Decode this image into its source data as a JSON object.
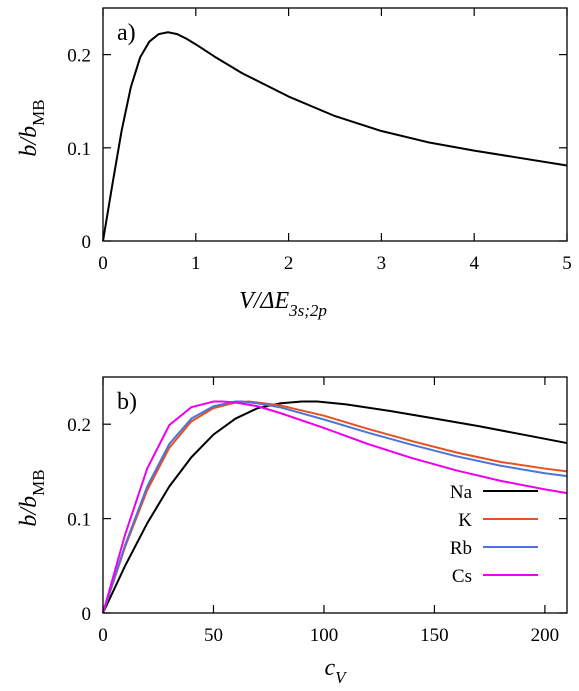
{
  "chart_data": [
    {
      "panel_label": "a)",
      "type": "line",
      "ylabel": {
        "main": "b/b",
        "sub": "MB"
      },
      "xlabel": {
        "main": "V/ΔE",
        "sub": "3s;2p"
      },
      "xlim": [
        0,
        5
      ],
      "ylim": [
        0,
        0.25
      ],
      "xticks": [
        0,
        1,
        2,
        3,
        4,
        5
      ],
      "yticks": [
        0,
        0.1,
        0.2
      ],
      "xtick_labels": [
        "0",
        "1",
        "2",
        "3",
        "4",
        "5"
      ],
      "ytick_labels": [
        "0",
        "0.1",
        "0.2"
      ],
      "series": [
        {
          "color": "#000000",
          "x": [
            0,
            0.1,
            0.2,
            0.3,
            0.4,
            0.5,
            0.6,
            0.7,
            0.8,
            0.9,
            1.0,
            1.2,
            1.5,
            2.0,
            2.5,
            3.0,
            3.5,
            4.0,
            4.5,
            5.0
          ],
          "y": [
            0,
            0.06,
            0.118,
            0.165,
            0.197,
            0.214,
            0.222,
            0.224,
            0.222,
            0.217,
            0.211,
            0.198,
            0.18,
            0.155,
            0.134,
            0.118,
            0.106,
            0.097,
            0.089,
            0.081
          ]
        }
      ]
    },
    {
      "panel_label": "b)",
      "type": "line",
      "ylabel": {
        "main": "b/b",
        "sub": "MB"
      },
      "xlabel": {
        "main": "c",
        "sub": "V"
      },
      "xlim": [
        0,
        210
      ],
      "ylim": [
        0,
        0.25
      ],
      "xticks": [
        0,
        50,
        100,
        150,
        200
      ],
      "yticks": [
        0,
        0.1,
        0.2
      ],
      "xtick_labels": [
        "0",
        "50",
        "100",
        "150",
        "200"
      ],
      "ytick_labels": [
        "0",
        "0.1",
        "0.2"
      ],
      "legend_position": "bottom-right",
      "series": [
        {
          "name": "Na",
          "color": "#000000",
          "x": [
            0,
            10,
            20,
            30,
            40,
            50,
            60,
            70,
            80,
            90,
            97,
            110,
            130,
            150,
            170,
            190,
            210
          ],
          "y": [
            0,
            0.05,
            0.095,
            0.134,
            0.165,
            0.189,
            0.206,
            0.217,
            0.222,
            0.224,
            0.224,
            0.221,
            0.214,
            0.206,
            0.198,
            0.189,
            0.18
          ]
        },
        {
          "name": "K",
          "color": "#e8501e",
          "x": [
            0,
            10,
            20,
            30,
            40,
            50,
            60,
            66,
            70,
            80,
            100,
            120,
            140,
            160,
            180,
            200,
            210
          ],
          "y": [
            0,
            0.07,
            0.13,
            0.175,
            0.203,
            0.217,
            0.223,
            0.224,
            0.223,
            0.22,
            0.209,
            0.195,
            0.182,
            0.17,
            0.16,
            0.153,
            0.15
          ]
        },
        {
          "name": "Rb",
          "color": "#4d74d9",
          "x": [
            0,
            10,
            20,
            30,
            40,
            50,
            60,
            63,
            70,
            80,
            100,
            120,
            140,
            160,
            180,
            200,
            210
          ],
          "y": [
            0,
            0.072,
            0.134,
            0.179,
            0.206,
            0.219,
            0.224,
            0.224,
            0.222,
            0.218,
            0.205,
            0.191,
            0.178,
            0.166,
            0.156,
            0.148,
            0.145
          ]
        },
        {
          "name": "Cs",
          "color": "#ee00ee",
          "x": [
            0,
            10,
            20,
            30,
            40,
            50,
            54,
            60,
            70,
            80,
            100,
            120,
            140,
            160,
            180,
            200,
            210
          ],
          "y": [
            0,
            0.083,
            0.153,
            0.199,
            0.218,
            0.224,
            0.224,
            0.223,
            0.219,
            0.212,
            0.196,
            0.179,
            0.164,
            0.151,
            0.14,
            0.131,
            0.127
          ]
        }
      ]
    }
  ]
}
